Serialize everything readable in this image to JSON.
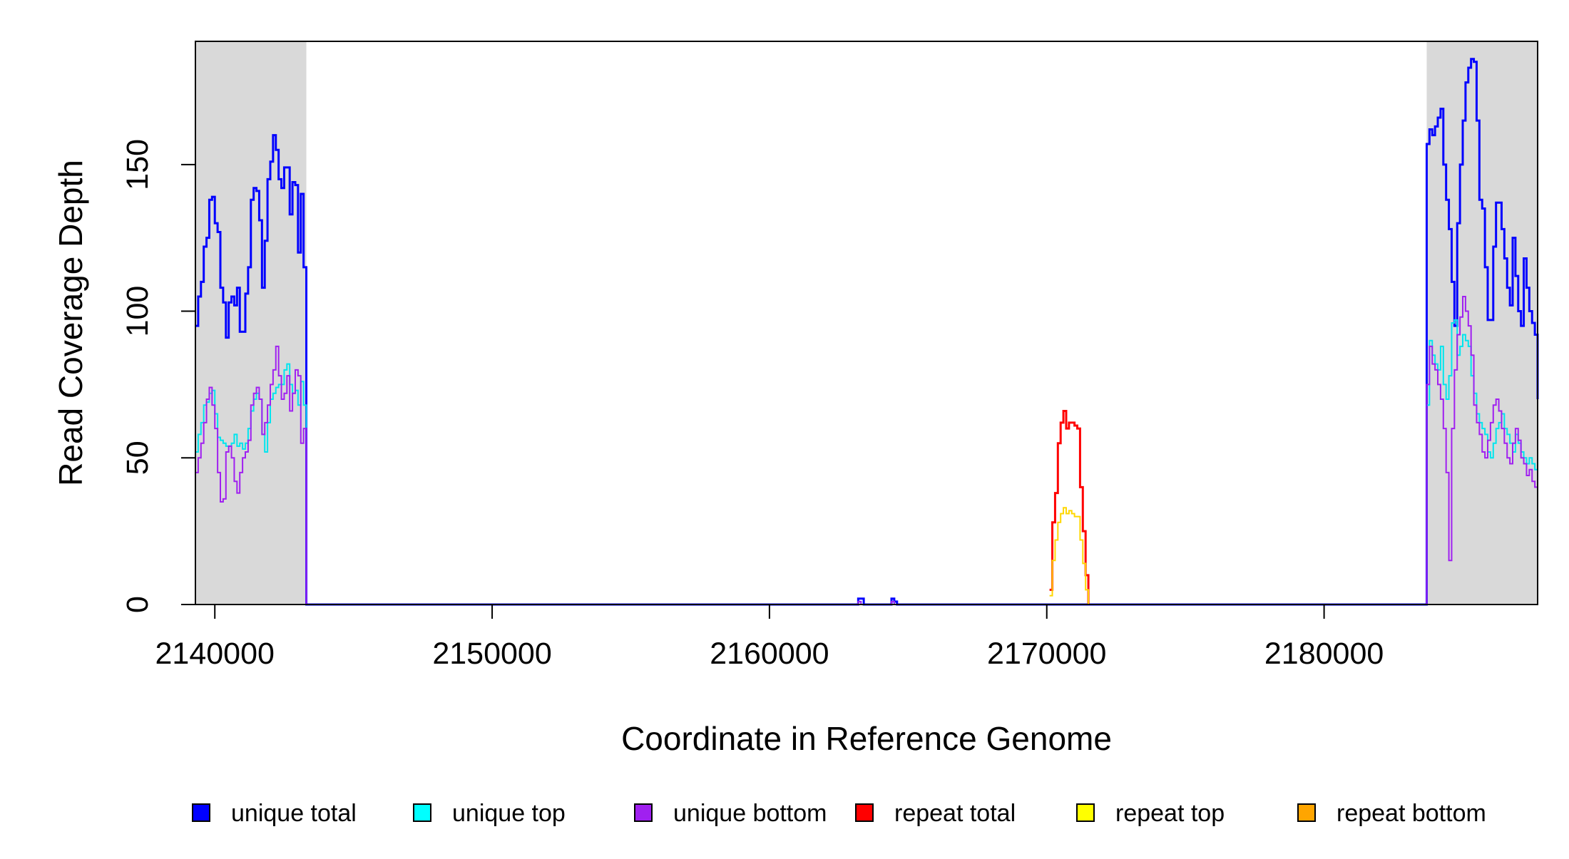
{
  "chart_data": {
    "type": "line",
    "title": "",
    "xlabel": "Coordinate in Reference Genome",
    "ylabel": "Read Coverage Depth",
    "xlim": [
      2139300,
      2187700
    ],
    "ylim": [
      0,
      192
    ],
    "x_ticks": [
      2140000,
      2150000,
      2160000,
      2170000,
      2180000
    ],
    "x_tick_labels": [
      "2140000",
      "2150000",
      "2160000",
      "2170000",
      "2180000"
    ],
    "y_ticks": [
      0,
      50,
      100,
      150
    ],
    "y_tick_labels": [
      "0",
      "50",
      "100",
      "150"
    ],
    "grid": false,
    "legend_position": "bottom",
    "shaded_regions": [
      {
        "x0": 2139300,
        "x1": 2143300,
        "color": "#d9d9d9"
      },
      {
        "x0": 2183700,
        "x1": 2187700,
        "color": "#d9d9d9"
      }
    ],
    "series": [
      {
        "name": "unique total",
        "color": "#0000ff",
        "width": 3,
        "x": [
          2139300,
          2139400,
          2139500,
          2139600,
          2139700,
          2139800,
          2139900,
          2140000,
          2140100,
          2140200,
          2140300,
          2140400,
          2140500,
          2140600,
          2140700,
          2140800,
          2140900,
          2141000,
          2141100,
          2141200,
          2141300,
          2141400,
          2141500,
          2141600,
          2141700,
          2141800,
          2141900,
          2142000,
          2142100,
          2142200,
          2142300,
          2142400,
          2142500,
          2142600,
          2142700,
          2142800,
          2142900,
          2143000,
          2143100,
          2143200,
          2143300,
          2143350,
          2163100,
          2163200,
          2163300,
          2163400,
          2164300,
          2164400,
          2164500,
          2164600,
          2183600,
          2183700,
          2183800,
          2183900,
          2184000,
          2184100,
          2184200,
          2184300,
          2184400,
          2184500,
          2184600,
          2184700,
          2184800,
          2184900,
          2185000,
          2185100,
          2185200,
          2185300,
          2185400,
          2185500,
          2185600,
          2185700,
          2185800,
          2185900,
          2186000,
          2186100,
          2186200,
          2186300,
          2186400,
          2186500,
          2186600,
          2186700,
          2186800,
          2186900,
          2187000,
          2187100,
          2187200,
          2187300,
          2187400,
          2187500,
          2187600,
          2187700
        ],
        "y": [
          95,
          105,
          110,
          122,
          125,
          138,
          139,
          130,
          127,
          108,
          103,
          91,
          103,
          105,
          102,
          108,
          93,
          93,
          106,
          115,
          138,
          142,
          141,
          131,
          108,
          124,
          145,
          151,
          160,
          155,
          145,
          142,
          149,
          149,
          133,
          144,
          143,
          120,
          140,
          115,
          0,
          0,
          0,
          2,
          2,
          0,
          0,
          2,
          1,
          0,
          0,
          157,
          162,
          160,
          163,
          166,
          169,
          150,
          138,
          128,
          110,
          95,
          130,
          150,
          165,
          178,
          183,
          186,
          185,
          165,
          138,
          135,
          115,
          97,
          97,
          122,
          137,
          137,
          128,
          118,
          108,
          102,
          125,
          112,
          100,
          95,
          118,
          108,
          100,
          96,
          92,
          70
        ]
      },
      {
        "name": "unique top",
        "color": "#00e5ee",
        "width": 2,
        "x": [
          2139300,
          2139400,
          2139500,
          2139600,
          2139700,
          2139800,
          2139900,
          2140000,
          2140100,
          2140200,
          2140300,
          2140400,
          2140500,
          2140600,
          2140700,
          2140800,
          2140900,
          2141000,
          2141100,
          2141200,
          2141300,
          2141400,
          2141500,
          2141600,
          2141700,
          2141800,
          2141900,
          2142000,
          2142100,
          2142200,
          2142300,
          2142400,
          2142500,
          2142600,
          2142700,
          2142800,
          2142900,
          2143000,
          2143100,
          2143200,
          2143300,
          2143350,
          2163100,
          2163200,
          2163300,
          2164300,
          2164400,
          2164500,
          2183600,
          2183700,
          2183800,
          2183900,
          2184000,
          2184100,
          2184200,
          2184300,
          2184400,
          2184500,
          2184600,
          2184700,
          2184800,
          2184900,
          2185000,
          2185100,
          2185200,
          2185300,
          2185400,
          2185500,
          2185600,
          2185700,
          2185800,
          2185900,
          2186000,
          2186100,
          2186200,
          2186300,
          2186400,
          2186500,
          2186600,
          2186700,
          2186800,
          2186900,
          2187000,
          2187100,
          2187200,
          2187300,
          2187400,
          2187500,
          2187600,
          2187700
        ],
        "y": [
          52,
          58,
          62,
          68,
          69,
          72,
          73,
          65,
          57,
          56,
          55,
          54,
          54,
          55,
          58,
          54,
          55,
          53,
          55,
          60,
          66,
          70,
          72,
          70,
          58,
          52,
          62,
          70,
          72,
          74,
          75,
          75,
          80,
          82,
          75,
          72,
          73,
          68,
          76,
          68,
          0,
          0,
          0,
          1,
          0,
          0,
          1,
          0,
          0,
          68,
          90,
          85,
          82,
          80,
          88,
          75,
          70,
          78,
          96,
          97,
          85,
          88,
          92,
          90,
          88,
          78,
          72,
          65,
          62,
          60,
          58,
          52,
          50,
          55,
          60,
          62,
          65,
          60,
          58,
          55,
          52,
          58,
          55,
          52,
          50,
          48,
          50,
          48,
          46,
          40
        ]
      },
      {
        "name": "unique bottom",
        "color": "#a020f0",
        "width": 2,
        "x": [
          2139300,
          2139400,
          2139500,
          2139600,
          2139700,
          2139800,
          2139900,
          2140000,
          2140100,
          2140200,
          2140300,
          2140400,
          2140500,
          2140600,
          2140700,
          2140800,
          2140900,
          2141000,
          2141100,
          2141200,
          2141300,
          2141400,
          2141500,
          2141600,
          2141700,
          2141800,
          2141900,
          2142000,
          2142100,
          2142200,
          2142300,
          2142400,
          2142500,
          2142600,
          2142700,
          2142800,
          2142900,
          2143000,
          2143100,
          2143200,
          2143300,
          2143350,
          2163100,
          2163200,
          2163300,
          2164300,
          2164400,
          2164500,
          2183600,
          2183700,
          2183800,
          2183900,
          2184000,
          2184100,
          2184200,
          2184300,
          2184400,
          2184500,
          2184600,
          2184700,
          2184800,
          2184900,
          2185000,
          2185100,
          2185200,
          2185300,
          2185400,
          2185500,
          2185600,
          2185700,
          2185800,
          2185900,
          2186000,
          2186100,
          2186200,
          2186300,
          2186400,
          2186500,
          2186600,
          2186700,
          2186800,
          2186900,
          2187000,
          2187100,
          2187200,
          2187300,
          2187400,
          2187500,
          2187600,
          2187700
        ],
        "y": [
          45,
          50,
          55,
          62,
          70,
          74,
          68,
          60,
          45,
          35,
          36,
          52,
          54,
          50,
          42,
          38,
          45,
          50,
          52,
          56,
          68,
          72,
          74,
          70,
          58,
          62,
          68,
          75,
          80,
          88,
          78,
          70,
          72,
          78,
          66,
          72,
          80,
          78,
          55,
          60,
          0,
          0,
          0,
          1,
          0,
          0,
          1,
          0,
          0,
          75,
          88,
          82,
          80,
          75,
          70,
          60,
          45,
          15,
          60,
          80,
          92,
          98,
          105,
          100,
          95,
          85,
          68,
          62,
          58,
          52,
          50,
          56,
          62,
          68,
          70,
          66,
          60,
          55,
          50,
          48,
          55,
          60,
          56,
          50,
          48,
          44,
          46,
          42,
          40,
          38
        ]
      },
      {
        "name": "repeat total",
        "color": "#ff0000",
        "width": 3,
        "x": [
          2170100,
          2170200,
          2170300,
          2170400,
          2170500,
          2170600,
          2170700,
          2170800,
          2170900,
          2171000,
          2171100,
          2171200,
          2171300,
          2171400,
          2171500
        ],
        "y": [
          5,
          28,
          38,
          55,
          62,
          66,
          60,
          62,
          62,
          61,
          60,
          40,
          25,
          10,
          0
        ]
      },
      {
        "name": "repeat top",
        "color": "#ffd700",
        "width": 2,
        "x": [
          2170100,
          2170200,
          2170300,
          2170400,
          2170500,
          2170600,
          2170700,
          2170800,
          2170900,
          2171000,
          2171100,
          2171200,
          2171300,
          2171400,
          2171500
        ],
        "y": [
          3,
          15,
          22,
          28,
          31,
          33,
          31,
          32,
          31,
          30,
          30,
          22,
          14,
          5,
          0
        ]
      },
      {
        "name": "repeat bottom",
        "color": "#ffa500",
        "width": 2,
        "x": [
          2139300,
          2187700
        ],
        "y": [
          0,
          0
        ]
      }
    ]
  },
  "legend": [
    {
      "label": "unique total",
      "color": "#0000ff"
    },
    {
      "label": "unique top",
      "color": "#00ffff"
    },
    {
      "label": "unique bottom",
      "color": "#a020f0"
    },
    {
      "label": "repeat total",
      "color": "#ff0000"
    },
    {
      "label": "repeat top",
      "color": "#ffff00"
    },
    {
      "label": "repeat bottom",
      "color": "#ffa500"
    }
  ]
}
